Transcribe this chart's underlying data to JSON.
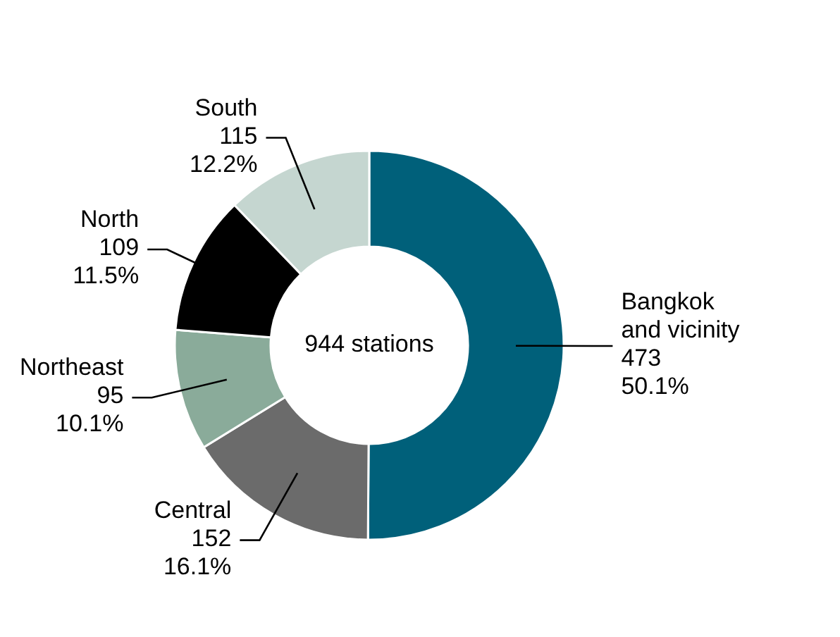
{
  "chart_data": {
    "type": "donut",
    "categories": [
      "Bangkok and vicinity",
      "Central",
      "Northeast",
      "North",
      "South"
    ],
    "values": [
      473,
      152,
      95,
      109,
      115
    ],
    "colors": [
      "#00607a",
      "#6b6b6b",
      "#8aab9a",
      "#000000",
      "#c5d6d0"
    ],
    "value_labels": [
      "473\n50.1%",
      "152\n16.1%",
      "95\n10.1%",
      "109\n11.5%",
      "115\n12.2%"
    ],
    "annotations": [
      "944 stations"
    ]
  }
}
